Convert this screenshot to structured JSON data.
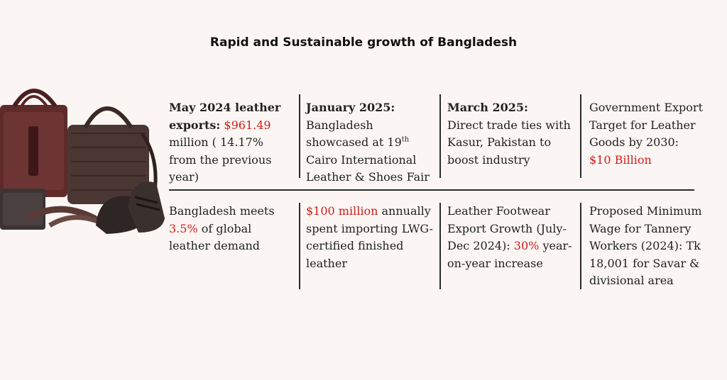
{
  "title": "Rapid and Sustainable growth of Bangladesh",
  "colors": {
    "highlight": "#d01c1c",
    "background": "#fbf6f3",
    "text": "#222222"
  },
  "image": {
    "description_icon": "leather-goods-image"
  },
  "row1": {
    "c1": {
      "bold": "May 2024 leather exports:",
      "value": "$961.49",
      "rest": "million (  14.17% from the previous year)"
    },
    "c2": {
      "bold": "January 2025:",
      "text_a": "Bangladesh showcased at 19",
      "sup": "th",
      "text_b": "Cairo International Leather & Shoes Fair"
    },
    "c3": {
      "bold": "March 2025:",
      "text": "Direct trade ties with Kasur, Pakistan to boost industry"
    },
    "c4": {
      "text": "Government Export Target for Leather Goods by 2030:",
      "value": "$10 Billion"
    }
  },
  "row2": {
    "c1": {
      "pre": "Bangladesh meets",
      "value": "3.5%",
      "post": "of global leather demand"
    },
    "c2": {
      "value": "$100 million",
      "post": "annually spent importing LWG- certified finished leather"
    },
    "c3": {
      "pre": "Leather Footwear Export Growth (July-Dec 2024):",
      "value": "30%",
      "post": "year-on-year increase"
    },
    "c4": {
      "text": "Proposed Minimum Wage for Tannery Workers (2024): Tk 18,001 for Savar & divisional area"
    }
  }
}
